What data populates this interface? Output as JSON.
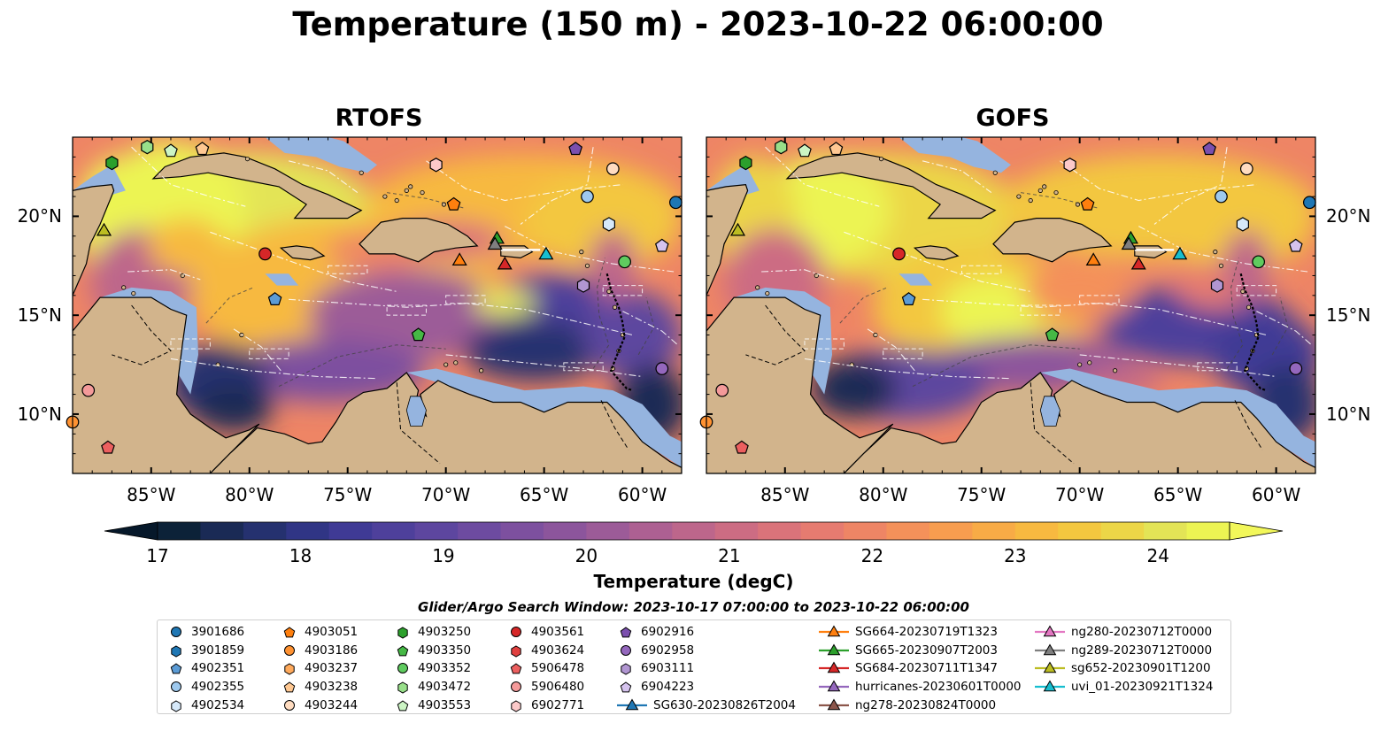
{
  "title": "Temperature (150 m) - 2023-10-22 06:00:00",
  "panels": [
    {
      "title": "RTOFS"
    },
    {
      "title": "GOFS"
    }
  ],
  "colorbar": {
    "label": "Temperature (degC)",
    "min": 17,
    "max": 24.5,
    "step": 0.5,
    "ticks": [
      "17",
      "18",
      "19",
      "20",
      "21",
      "22",
      "23",
      "24"
    ],
    "extend": "both",
    "colors": [
      "#0c2238",
      "#1a2a55",
      "#25316f",
      "#303585",
      "#3f3a95",
      "#4e409b",
      "#5d469f",
      "#6d4ba0",
      "#7d509f",
      "#8c559c",
      "#9c5b98",
      "#ad6092",
      "#bd668b",
      "#cc6c83",
      "#da737a",
      "#e67b70",
      "#ee8565",
      "#f4915a",
      "#f79d4f",
      "#f8ab46",
      "#f7b940",
      "#f3c73f",
      "#ecd647",
      "#e3e456",
      "#ecf453"
    ],
    "under_color": "#06182a",
    "over_color": "#f2f75a"
  },
  "search_window": "Glider/Argo Search Window: 2023-10-17 07:00:00 to 2023-10-22 06:00:00",
  "axes": {
    "lon_range": [
      -89,
      -58
    ],
    "lat_range": [
      7,
      24
    ],
    "xticks": [
      {
        "value": -85,
        "label": "85°W"
      },
      {
        "value": -80,
        "label": "80°W"
      },
      {
        "value": -75,
        "label": "75°W"
      },
      {
        "value": -70,
        "label": "70°W"
      },
      {
        "value": -65,
        "label": "65°W"
      },
      {
        "value": -60,
        "label": "60°W"
      }
    ],
    "yticks": [
      {
        "value": 10,
        "label": "10°N"
      },
      {
        "value": 15,
        "label": "15°N"
      },
      {
        "value": 20,
        "label": "20°N"
      }
    ]
  },
  "map_colors": {
    "land": "#d2b48c",
    "shelf": "#95b4df",
    "ocean_default": "#e5752a"
  },
  "chart_data": {
    "type": "map",
    "variable": "Temperature (150 m)",
    "units": "degC",
    "floats": [
      {
        "id": "3901686",
        "marker": "circle",
        "color": "#1f77b4",
        "lon": -58.3,
        "lat": 20.7
      },
      {
        "id": "3901859",
        "marker": "hexagon",
        "color": "#1f77b4",
        "lon": null,
        "lat": null
      },
      {
        "id": "4902351",
        "marker": "pentagon",
        "color": "#5b9bd5",
        "lon": -78.7,
        "lat": 15.8
      },
      {
        "id": "4902355",
        "marker": "circle",
        "color": "#9ec9ee",
        "lon": -62.8,
        "lat": 21.0
      },
      {
        "id": "4902534",
        "marker": "hexagon",
        "color": "#d6e9fa",
        "lon": -61.7,
        "lat": 19.6
      },
      {
        "id": "4903051",
        "marker": "pentagon",
        "color": "#ff7f0e",
        "lon": -69.6,
        "lat": 20.6
      },
      {
        "id": "4903186",
        "marker": "circle",
        "color": "#ff9232",
        "lon": -89.0,
        "lat": 9.6
      },
      {
        "id": "4903237",
        "marker": "hexagon",
        "color": "#ffaa5c",
        "lon": null,
        "lat": null
      },
      {
        "id": "4903238",
        "marker": "pentagon",
        "color": "#ffc892",
        "lon": -82.4,
        "lat": 23.4
      },
      {
        "id": "4903244",
        "marker": "circle",
        "color": "#ffdcc0",
        "lon": -61.5,
        "lat": 22.4
      },
      {
        "id": "4903250",
        "marker": "hexagon",
        "color": "#2ca02c",
        "lon": -87.0,
        "lat": 22.7
      },
      {
        "id": "4903350",
        "marker": "pentagon",
        "color": "#45b845",
        "lon": -71.4,
        "lat": 14.0
      },
      {
        "id": "4903352",
        "marker": "circle",
        "color": "#5fcb5f",
        "lon": -60.9,
        "lat": 17.7
      },
      {
        "id": "4903472",
        "marker": "hexagon",
        "color": "#98df8a",
        "lon": -85.2,
        "lat": 23.5
      },
      {
        "id": "4903553",
        "marker": "pentagon",
        "color": "#ccf5c4",
        "lon": -84.0,
        "lat": 23.3
      },
      {
        "id": "4903561",
        "marker": "circle",
        "color": "#d62728",
        "lon": -79.2,
        "lat": 18.1
      },
      {
        "id": "4903624",
        "marker": "hexagon",
        "color": "#e0403f",
        "lon": null,
        "lat": null
      },
      {
        "id": "5906478",
        "marker": "pentagon",
        "color": "#ec5f5f",
        "lon": -87.2,
        "lat": 8.3
      },
      {
        "id": "5906480",
        "marker": "circle",
        "color": "#f49a9a",
        "lon": -88.2,
        "lat": 11.2
      },
      {
        "id": "6902771",
        "marker": "hexagon",
        "color": "#fcc9c9",
        "lon": -70.5,
        "lat": 22.6
      },
      {
        "id": "6902916",
        "marker": "pentagon",
        "color": "#7b4fae",
        "lon": -63.4,
        "lat": 23.4
      },
      {
        "id": "6902958",
        "marker": "circle",
        "color": "#9467bd",
        "lon": -59.0,
        "lat": 12.3
      },
      {
        "id": "6903111",
        "marker": "hexagon",
        "color": "#b196d2",
        "lon": -63.0,
        "lat": 16.5
      },
      {
        "id": "6904223",
        "marker": "pentagon",
        "color": "#d5c3ee",
        "lon": -59.0,
        "lat": 18.5
      }
    ],
    "gliders": [
      {
        "id": "SG630-20230826T2004",
        "marker": "triangle",
        "color": "#1f77b4",
        "lon": null,
        "lat": null
      },
      {
        "id": "SG664-20230719T1323",
        "marker": "triangle",
        "color": "#ff7f0e",
        "lon": -69.3,
        "lat": 17.8
      },
      {
        "id": "SG665-20230907T2003",
        "marker": "triangle",
        "color": "#2ca02c",
        "lon": -67.4,
        "lat": 18.9
      },
      {
        "id": "SG684-20230711T1347",
        "marker": "triangle",
        "color": "#d62728",
        "lon": -67.0,
        "lat": 17.6
      },
      {
        "id": "hurricanes-20230601T0000",
        "marker": "triangle",
        "color": "#9467bd",
        "lon": null,
        "lat": null
      },
      {
        "id": "ng278-20230824T0000",
        "marker": "triangle",
        "color": "#8c564b",
        "lon": null,
        "lat": null
      },
      {
        "id": "ng280-20230712T0000",
        "marker": "triangle",
        "color": "#e377c2",
        "lon": null,
        "lat": null
      },
      {
        "id": "ng289-20230712T0000",
        "marker": "triangle",
        "color": "#7f7f7f",
        "lon": -67.5,
        "lat": 18.6
      },
      {
        "id": "sg652-20230901T1200",
        "marker": "triangle",
        "color": "#bcbd22",
        "lon": -87.4,
        "lat": 19.3
      },
      {
        "id": "uvi_01-20230921T1324",
        "marker": "triangle",
        "color": "#17becf",
        "lon": -64.9,
        "lat": 18.1
      }
    ]
  }
}
